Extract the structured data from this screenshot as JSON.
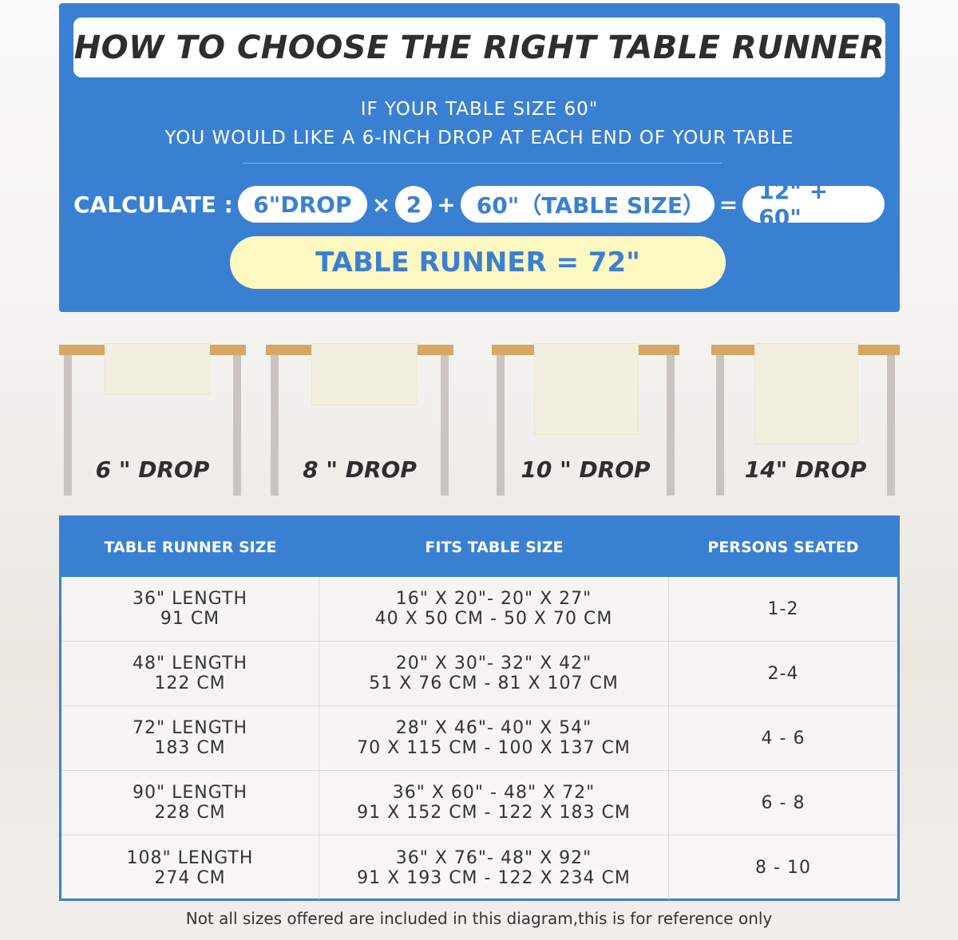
{
  "header": {
    "title": "HOW TO CHOOSE THE RIGHT TABLE RUNNER",
    "line1": "IF YOUR TABLE SIZE 60\"",
    "line2": "YOU WOULD LIKE A 6-INCH DROP AT EACH END OF YOUR TABLE"
  },
  "calc": {
    "label": "CALCULATE :",
    "drop": "6\"DROP",
    "times": "×",
    "two": "2",
    "plus": "+",
    "table": "60\"（TABLE SIZE）",
    "equals": "=",
    "sum": "12\" + 60\"",
    "result": "TABLE RUNNER = 72\""
  },
  "drops": [
    {
      "label": "6 \" DROP"
    },
    {
      "label": "8 \" DROP"
    },
    {
      "label": "10 \" DROP"
    },
    {
      "label": "14\" DROP"
    }
  ],
  "table": {
    "headers": [
      "TABLE RUNNER SIZE",
      "FITS TABLE SIZE",
      "PERSONS SEATED"
    ],
    "rows": [
      {
        "len": "36\" LENGTH",
        "cm": "91 CM",
        "fit_in": "16\" X 20\"- 20\" X 27\"",
        "fit_cm": "40 X 50 CM - 50 X 70 CM",
        "persons": "1-2"
      },
      {
        "len": "48\" LENGTH",
        "cm": "122 CM",
        "fit_in": "20\" X 30\"- 32\" X 42\"",
        "fit_cm": "51 X 76 CM - 81 X 107 CM",
        "persons": "2-4"
      },
      {
        "len": "72\" LENGTH",
        "cm": "183 CM",
        "fit_in": "28\" X 46\"- 40\" X 54\"",
        "fit_cm": "70 X 115 CM - 100 X 137 CM",
        "persons": "4 - 6"
      },
      {
        "len": "90\" LENGTH",
        "cm": "228 CM",
        "fit_in": "36\" X 60\" - 48\" X 72\"",
        "fit_cm": "91 X 152 CM - 122 X 183 CM",
        "persons": "6 - 8"
      },
      {
        "len": "108\" LENGTH",
        "cm": "274 CM",
        "fit_in": "36\" X 76\"- 48\" X 92\"",
        "fit_cm": "91 X 193 CM - 122 X 234 CM",
        "persons": "8 - 10"
      }
    ]
  },
  "footer": "Not all sizes offered are included in this diagram,this is for reference only",
  "colors": {
    "blue": "#3a80d2",
    "yellow": "#fdf7c0",
    "tabletop": "#d4a765"
  }
}
